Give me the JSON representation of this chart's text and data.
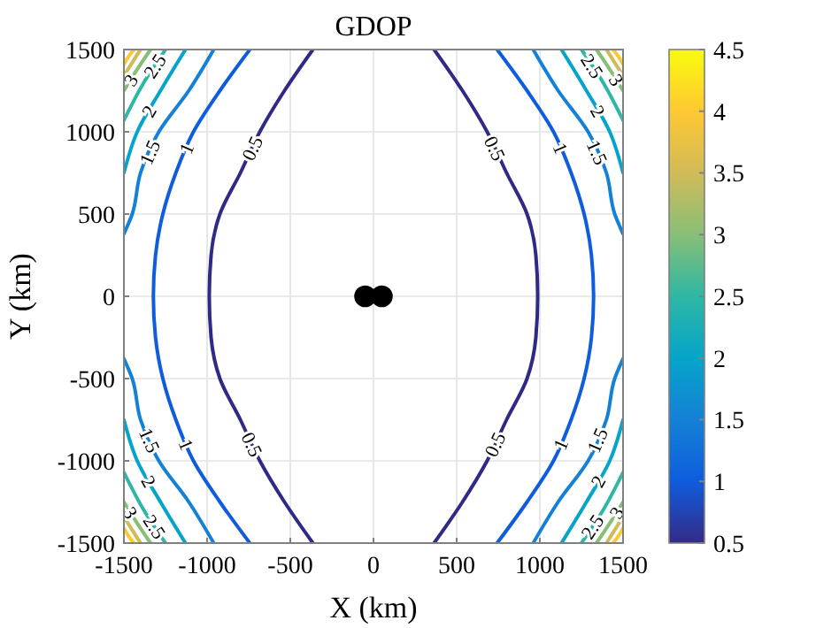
{
  "chart_data": {
    "type": "line",
    "title": "GDOP",
    "xlabel": "X (km)",
    "ylabel": "Y (km)",
    "xlim": [
      -1500,
      1500
    ],
    "ylim": [
      -1500,
      1500
    ],
    "xticks": [
      -1500,
      -1000,
      -500,
      0,
      500,
      1000,
      1500
    ],
    "yticks": [
      -1500,
      -1000,
      -500,
      0,
      500,
      1000,
      1500
    ],
    "grid": true,
    "marker": "none",
    "line_style": "solid",
    "clim": [
      0.5,
      4.5
    ],
    "cticks": [
      0.5,
      1,
      1.5,
      2,
      2.5,
      3,
      3.5,
      4,
      4.5
    ],
    "series": [
      {
        "name": "0.5",
        "color": "#2e2a86",
        "x": [
          364,
          535,
          683,
          800,
          923,
          976,
          987,
          976,
          923,
          800,
          683,
          535,
          364,
          null,
          -364,
          -535,
          -683,
          -800,
          -923,
          -976,
          -987,
          -976,
          -923,
          -800,
          -683,
          -535,
          -364
        ],
        "values": [
          1500,
          1250,
          1000,
          750,
          500,
          250,
          0,
          -250,
          -500,
          -750,
          -1000,
          -1250,
          -1500,
          null,
          1500,
          1250,
          1000,
          750,
          500,
          250,
          0,
          -250,
          -500,
          -750,
          -1000,
          -1250,
          -1500
        ]
      },
      {
        "name": "1",
        "color": "#0f5cdd",
        "x": [
          743,
          923,
          1082,
          1188,
          1266,
          1310,
          1323,
          1310,
          1266,
          1188,
          1082,
          923,
          743,
          null,
          -743,
          -923,
          -1082,
          -1188,
          -1266,
          -1310,
          -1323,
          -1310,
          -1266,
          -1188,
          -1082,
          -923,
          -743
        ],
        "values": [
          1500,
          1250,
          1000,
          750,
          500,
          250,
          0,
          -250,
          -500,
          -750,
          -1000,
          -1250,
          -1500,
          null,
          1500,
          1250,
          1000,
          750,
          500,
          250,
          0,
          -250,
          -500,
          -750,
          -1000,
          -1250,
          -1500
        ]
      },
      {
        "name": "1.5",
        "color": "#1481d6",
        "x": [
          960,
          1110,
          1290,
          1400,
          1450,
          1500,
          null,
          -960,
          -1110,
          -1290,
          -1400,
          -1450,
          -1500,
          null,
          960,
          1110,
          1290,
          1400,
          1450,
          1500,
          null,
          -960,
          -1110,
          -1290,
          -1400,
          -1450,
          -1500
        ],
        "values": [
          1500,
          1250,
          1000,
          750,
          500,
          380,
          null,
          1500,
          1250,
          1000,
          750,
          500,
          380,
          null,
          -1500,
          -1250,
          -1000,
          -750,
          -500,
          -380,
          null,
          -1500,
          -1250,
          -1000,
          -750,
          -500,
          -380
        ]
      },
      {
        "name": "2",
        "color": "#06a4ca",
        "x": [
          1130,
          1280,
          1420,
          1500,
          null,
          -1130,
          -1280,
          -1420,
          -1500,
          null,
          1130,
          1280,
          1420,
          1500,
          null,
          -1130,
          -1280,
          -1420,
          -1500
        ],
        "values": [
          1500,
          1250,
          1000,
          750,
          null,
          1500,
          1250,
          1000,
          750,
          null,
          -1500,
          -1250,
          -1000,
          -750,
          null,
          -1500,
          -1250,
          -1000,
          -750
        ]
      },
      {
        "name": "2.5",
        "color": "#2eb7a4",
        "x": [
          1250,
          1380,
          1500,
          null,
          -1250,
          -1380,
          -1500,
          null,
          1250,
          1380,
          1500,
          null,
          -1250,
          -1380,
          -1500
        ],
        "values": [
          1500,
          1300,
          1070,
          null,
          1500,
          1300,
          1070,
          null,
          -1500,
          -1300,
          -1070,
          null,
          -1500,
          -1300,
          -1070
        ]
      },
      {
        "name": "3",
        "color": "#87bf77",
        "x": [
          1340,
          1420,
          1500,
          null,
          -1340,
          -1420,
          -1500,
          null,
          1340,
          1420,
          1500,
          null,
          -1340,
          -1420,
          -1500
        ],
        "values": [
          1500,
          1380,
          1250,
          null,
          1500,
          1380,
          1250,
          null,
          -1500,
          -1380,
          -1250,
          null,
          -1500,
          -1380,
          -1250
        ]
      },
      {
        "color": "#d1bb59",
        "x": [
          1400,
          1450,
          1500,
          null,
          -1400,
          -1450,
          -1500,
          null,
          1400,
          1450,
          1500,
          null,
          -1400,
          -1450,
          -1500
        ],
        "values": [
          1500,
          1420,
          1340,
          null,
          1500,
          1420,
          1340,
          null,
          -1500,
          -1420,
          -1340,
          null,
          -1500,
          -1420,
          -1340
        ]
      },
      {
        "color": "#fec832",
        "x": [
          1440,
          1470,
          1500,
          null,
          -1440,
          -1470,
          -1500,
          null,
          1440,
          1470,
          1500,
          null,
          -1440,
          -1470,
          -1500
        ],
        "values": [
          1500,
          1460,
          1410,
          null,
          1500,
          1460,
          1410,
          null,
          -1500,
          -1460,
          -1410,
          null,
          -1500,
          -1460,
          -1410
        ]
      },
      {
        "type": "scatter",
        "color": "#000000",
        "marker": "circle",
        "x": [
          -50,
          50
        ],
        "values": [
          0,
          0
        ]
      }
    ]
  }
}
